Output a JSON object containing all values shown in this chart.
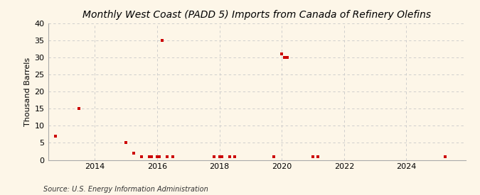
{
  "title": "Monthly West Coast (PADD 5) Imports from Canada of Refinery Olefins",
  "ylabel": "Thousand Barrels",
  "source": "Source: U.S. Energy Information Administration",
  "background_color": "#fdf6e8",
  "point_color": "#cc0000",
  "ylim": [
    0,
    40
  ],
  "yticks": [
    0,
    5,
    10,
    15,
    20,
    25,
    30,
    35,
    40
  ],
  "xlim_start": 2012.5,
  "xlim_end": 2025.9,
  "xticks": [
    2014,
    2016,
    2018,
    2020,
    2022,
    2024
  ],
  "data_points": [
    [
      2012.75,
      7
    ],
    [
      2013.5,
      15
    ],
    [
      2015.0,
      5
    ],
    [
      2015.25,
      2
    ],
    [
      2015.5,
      1
    ],
    [
      2015.75,
      1
    ],
    [
      2015.83,
      1
    ],
    [
      2016.0,
      1
    ],
    [
      2016.08,
      1
    ],
    [
      2016.17,
      35
    ],
    [
      2016.33,
      1
    ],
    [
      2016.5,
      1
    ],
    [
      2017.83,
      1
    ],
    [
      2018.0,
      1
    ],
    [
      2018.08,
      1
    ],
    [
      2018.33,
      1
    ],
    [
      2018.5,
      1
    ],
    [
      2019.75,
      1
    ],
    [
      2020.0,
      31
    ],
    [
      2020.08,
      30
    ],
    [
      2020.17,
      30
    ],
    [
      2021.0,
      1
    ],
    [
      2021.17,
      1
    ],
    [
      2025.25,
      1
    ]
  ],
  "grid_color": "#c8c8c8",
  "title_fontsize": 10,
  "axis_fontsize": 8,
  "tick_fontsize": 8,
  "marker_size": 12,
  "source_fontsize": 7
}
